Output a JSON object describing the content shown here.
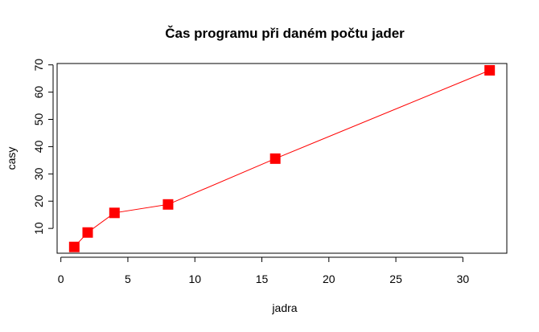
{
  "chart_data": {
    "type": "line",
    "title": "Čas programu při daném počtu jader",
    "xlabel": "jadra",
    "ylabel": "casy",
    "x": [
      1,
      2,
      4,
      8,
      16,
      32
    ],
    "series": [
      {
        "values": [
          3.2,
          8.5,
          15.7,
          18.8,
          35.6,
          68.0
        ],
        "color": "#ff0000",
        "marker": "square"
      }
    ],
    "xlim": [
      -0.28,
      33.28
    ],
    "ylim": [
      0.9,
      70.5
    ],
    "xticks": [
      0,
      5,
      10,
      15,
      20,
      25,
      30
    ],
    "yticks": [
      10,
      20,
      30,
      40,
      50,
      60,
      70
    ],
    "grid": false,
    "legend": "none"
  }
}
